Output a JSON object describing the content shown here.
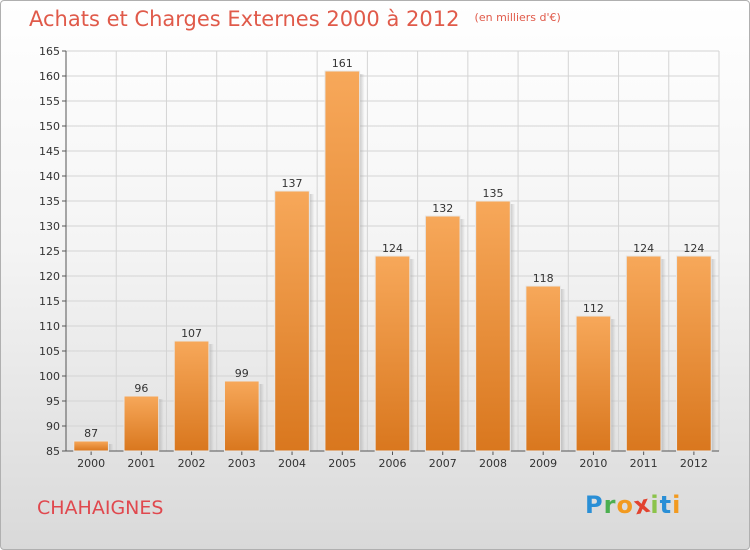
{
  "chart_data": {
    "type": "bar",
    "title": "Achats et Charges Externes 2000 à 2012",
    "subtitle": "(en milliers d'€)",
    "categories": [
      "2000",
      "2001",
      "2002",
      "2003",
      "2004",
      "2005",
      "2006",
      "2007",
      "2008",
      "2009",
      "2010",
      "2011",
      "2012"
    ],
    "values": [
      87,
      96,
      107,
      99,
      137,
      161,
      124,
      132,
      135,
      118,
      112,
      124,
      124
    ],
    "ylim": [
      85,
      165
    ],
    "yticks": [
      "85",
      "90",
      "95",
      "100",
      "105",
      "110",
      "115",
      "120",
      "125",
      "130",
      "135",
      "140",
      "145",
      "150",
      "155",
      "160",
      "165"
    ],
    "grid": true,
    "bar_color": "#f0943a",
    "bar_color_light": "#f7a85a",
    "bar_color_dark": "#d9771e"
  },
  "town": "CHAHAIGNES",
  "brand": {
    "letters": [
      "P",
      "r",
      "o",
      "x",
      "i",
      "t",
      "i"
    ],
    "colors": [
      "#2a8fd6",
      "#4caf50",
      "#f29a1f",
      "#e2432f",
      "#8bc34a",
      "#2a8fd6",
      "#f29a1f"
    ]
  }
}
